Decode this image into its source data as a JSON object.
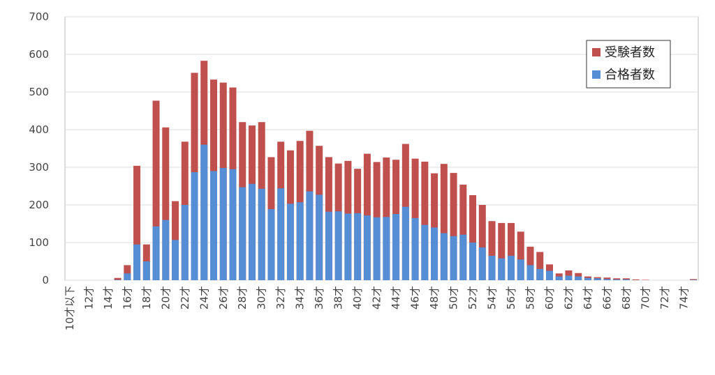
{
  "chart_data": {
    "type": "bar",
    "overlap": true,
    "categories": [
      "10才以下",
      null,
      "12才",
      null,
      "14才",
      null,
      "16才",
      null,
      "18才",
      null,
      "20才",
      null,
      "22才",
      null,
      "24才",
      null,
      "26才",
      null,
      "28才",
      null,
      "30才",
      null,
      "32才",
      null,
      "34才",
      null,
      "36才",
      null,
      "38才",
      null,
      "40才",
      null,
      "42才",
      null,
      "44才",
      null,
      "46才",
      null,
      "48才",
      null,
      "50才",
      null,
      "52才",
      null,
      "54才",
      null,
      "56才",
      null,
      "58才",
      null,
      "60才",
      null,
      "62才",
      null,
      "64才",
      null,
      "66才",
      null,
      "68才",
      null,
      "70才",
      null,
      "72才",
      null,
      "74才",
      null
    ],
    "series": [
      {
        "name": "受験者数",
        "color": "#c0504d",
        "values": [
          0,
          0,
          0,
          0,
          0,
          6,
          40,
          304,
          95,
          477,
          406,
          210,
          368,
          551,
          583,
          533,
          525,
          512,
          420,
          411,
          420,
          327,
          368,
          345,
          370,
          397,
          357,
          327,
          310,
          317,
          296,
          336,
          314,
          326,
          320,
          362,
          323,
          315,
          284,
          309,
          285,
          254,
          226,
          200,
          157,
          152,
          152,
          129,
          89,
          75,
          42,
          18,
          26,
          19,
          10,
          8,
          7,
          5,
          5,
          2,
          1,
          0,
          0,
          0,
          0,
          3
        ]
      },
      {
        "name": "合格者数",
        "color": "#558ed5",
        "values": [
          0,
          0,
          0,
          0,
          0,
          1,
          18,
          95,
          50,
          143,
          160,
          107,
          200,
          287,
          360,
          290,
          298,
          295,
          247,
          256,
          243,
          189,
          244,
          203,
          207,
          236,
          227,
          182,
          183,
          177,
          178,
          172,
          167,
          168,
          176,
          195,
          165,
          147,
          140,
          125,
          117,
          121,
          100,
          87,
          65,
          58,
          65,
          55,
          40,
          30,
          25,
          10,
          12,
          10,
          6,
          5,
          3,
          2,
          2,
          0,
          0,
          0,
          0,
          0,
          0,
          1
        ]
      }
    ],
    "ylim": [
      0,
      700
    ],
    "yticks": [
      0,
      100,
      200,
      300,
      400,
      500,
      600,
      700
    ],
    "grid": true,
    "legend": "top-right"
  }
}
